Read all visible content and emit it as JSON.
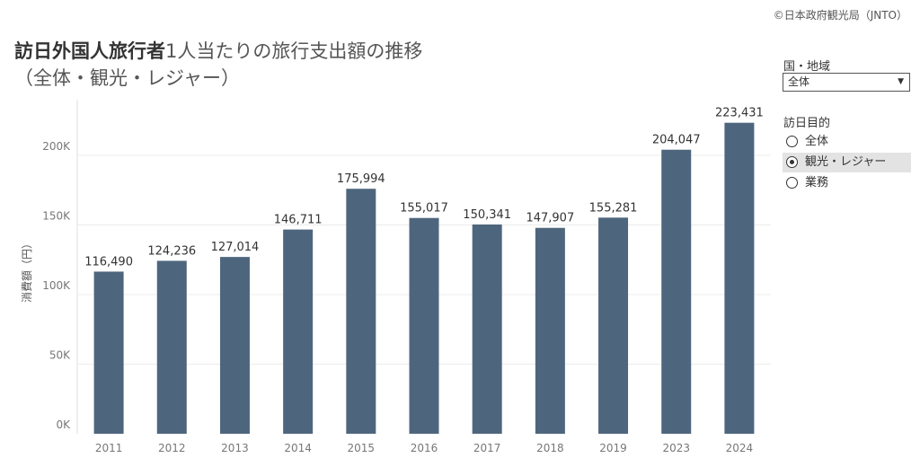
{
  "credit": "©日本政府観光局（JNTO）",
  "title": {
    "part1": "訪日外国人旅行者",
    "part2": "1人当たりの旅行支出額の推移",
    "line2": "（全体・観光・レジャー）"
  },
  "filters": {
    "region_label": "国・地域",
    "region_value": "全体",
    "purpose_label": "訪日目的",
    "purpose_options": [
      "全体",
      "観光・レジャー",
      "業務"
    ],
    "purpose_selected": "観光・レジャー"
  },
  "chart_data": {
    "type": "bar",
    "categories": [
      "2011",
      "2012",
      "2013",
      "2014",
      "2015",
      "2016",
      "2017",
      "2018",
      "2019",
      "2023",
      "2024"
    ],
    "values": [
      116490,
      124236,
      127014,
      146711,
      175994,
      155017,
      150341,
      147907,
      155281,
      204047,
      223431
    ],
    "value_labels": [
      "116,490",
      "124,236",
      "127,014",
      "146,711",
      "175,994",
      "155,017",
      "150,341",
      "147,907",
      "155,281",
      "204,047",
      "223,431"
    ],
    "ylabel": "消費額（円）",
    "yticks": [
      0,
      50000,
      100000,
      150000,
      200000
    ],
    "ytick_labels": [
      "0K",
      "50K",
      "100K",
      "150K",
      "200K"
    ],
    "ylim": [
      0,
      240000
    ],
    "grid": true,
    "colors": {
      "bar": "#4e667d",
      "grid": "#ececec",
      "axis": "#dddddd",
      "tick_text": "#777777",
      "label_text": "#333333"
    }
  }
}
